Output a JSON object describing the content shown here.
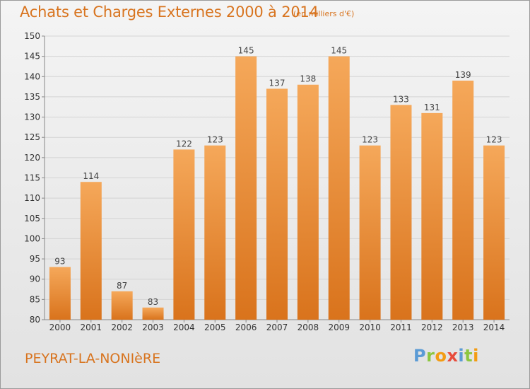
{
  "header": {
    "title": "Achats et Charges Externes 2000 à 2014",
    "unit": "(en milliers d'€)"
  },
  "footer": {
    "city": "PEYRAT-LA-NONIèRE",
    "brand": "Proxiti"
  },
  "colors": {
    "title": "#d8741f",
    "bar_top": "#f5a85a",
    "bar_bottom": "#d9731c",
    "grid": "#d4d4d4"
  },
  "chart_data": {
    "type": "bar",
    "title": "Achats et Charges Externes 2000 à 2014",
    "subtitle": "(en milliers d'€)",
    "xlabel": "",
    "ylabel": "",
    "categories": [
      "2000",
      "2001",
      "2002",
      "2003",
      "2004",
      "2005",
      "2006",
      "2007",
      "2008",
      "2009",
      "2010",
      "2011",
      "2012",
      "2013",
      "2014"
    ],
    "values": [
      93,
      114,
      87,
      83,
      122,
      123,
      145,
      137,
      138,
      145,
      123,
      133,
      131,
      139,
      123
    ],
    "ylim": [
      80,
      150
    ],
    "yticks": [
      80,
      85,
      90,
      95,
      100,
      105,
      110,
      115,
      120,
      125,
      130,
      135,
      140,
      145,
      150
    ],
    "grid": true,
    "data_labels": true,
    "legend": "none"
  }
}
